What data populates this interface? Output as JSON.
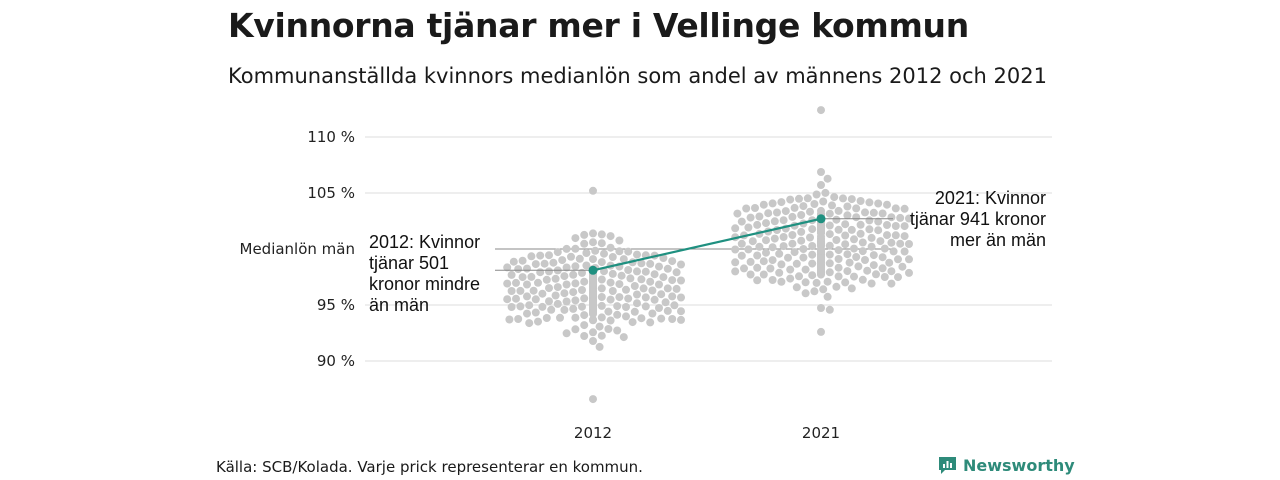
{
  "header": {
    "title": "Kvinnorna tjänar mer i Vellinge kommun",
    "subtitle": "Kommunanställda kvinnors medianlön som andel av männens 2012 och 2021"
  },
  "footer": {
    "source": "Källa: SCB/Kolada. Varje prick representerar en kommun.",
    "brand": "Newsworthy"
  },
  "colors": {
    "dots": "#c8c8c8",
    "highlight": "#1f9080",
    "grid": "#dddddd",
    "reference": "#888888"
  },
  "chart_data": {
    "type": "scatter",
    "subtype": "beeswarm",
    "categories": [
      "2012",
      "2021"
    ],
    "y_ticks": [
      {
        "value": 110,
        "label": "110 %"
      },
      {
        "value": 105,
        "label": "105 %"
      },
      {
        "value": 95,
        "label": "95 %"
      },
      {
        "value": 90,
        "label": "90 %"
      }
    ],
    "reference_line": {
      "value": 100,
      "label": "Medianlön män"
    },
    "ylim": [
      86,
      112
    ],
    "grid": true,
    "distributions": [
      {
        "category": "2012",
        "n": 290,
        "min": 86.6,
        "max": 105.2,
        "mean": 96.8,
        "sd": 2.7
      },
      {
        "category": "2021",
        "n": 290,
        "min": 92.6,
        "max": 112.4,
        "mean": 100.6,
        "sd": 3.1
      }
    ],
    "highlight": {
      "name": "Vellinge",
      "values": [
        {
          "category": "2012",
          "value": 98.1
        },
        {
          "category": "2021",
          "value": 102.7
        }
      ]
    },
    "annotations": [
      {
        "category": "2012",
        "lines": [
          "2012: Kvinnor",
          "tjänar 501",
          "kronor mindre",
          "än män"
        ]
      },
      {
        "category": "2021",
        "lines": [
          "2021: Kvinnor",
          "tjänar 941 kronor",
          "mer än män"
        ]
      }
    ]
  }
}
